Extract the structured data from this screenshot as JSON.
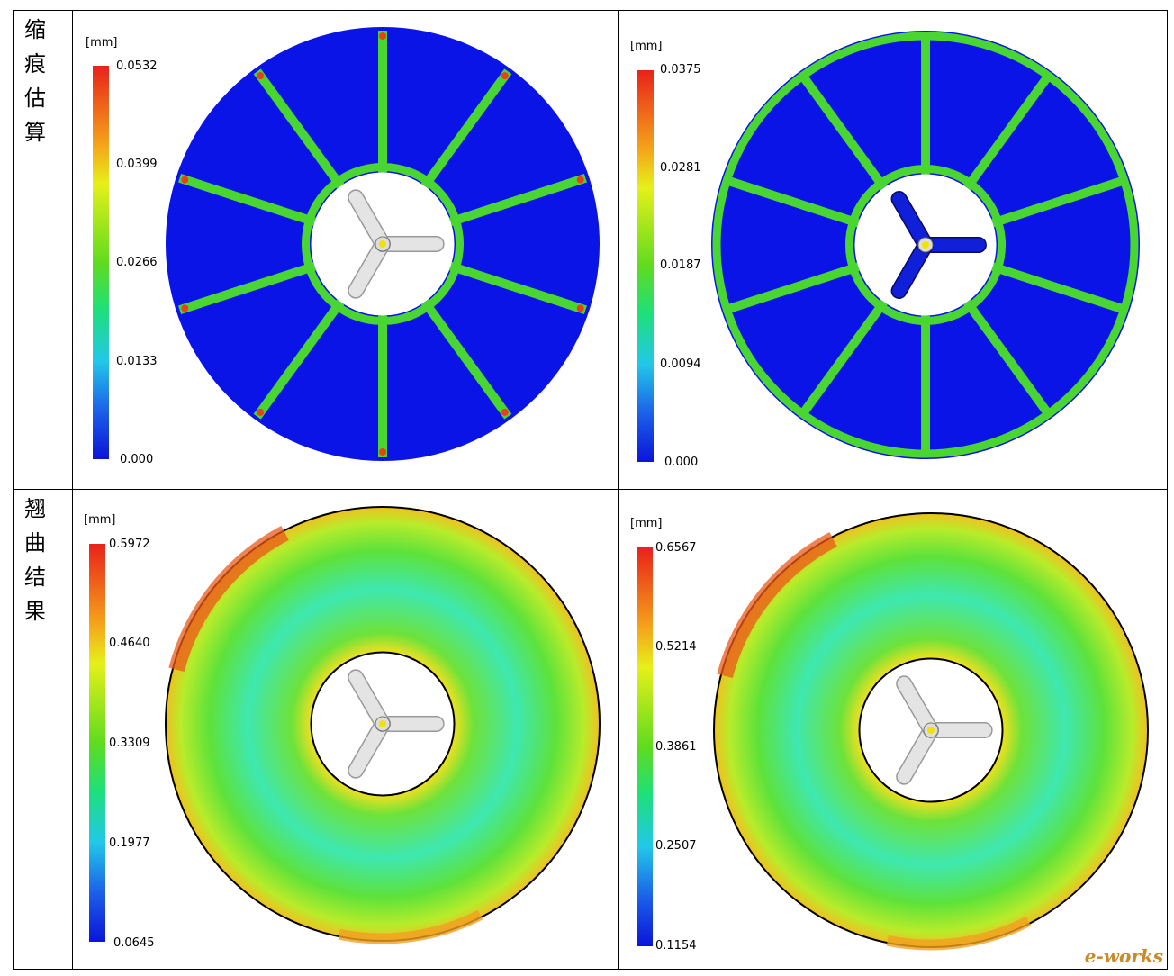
{
  "rows": [
    {
      "label_chars": [
        "缩",
        "痕",
        "估",
        "算"
      ]
    },
    {
      "label_chars": [
        "翘",
        "曲",
        "结",
        "果"
      ]
    }
  ],
  "panels": [
    {
      "id": "p1",
      "unit": "[mm]",
      "ticks": [
        "0.0532",
        "0.0399",
        "0.0266",
        "0.0133",
        "0.000"
      ],
      "field": "sink",
      "runner": "gray",
      "spokes": 10
    },
    {
      "id": "p2",
      "unit": "[mm]",
      "ticks": [
        "0.0375",
        "0.0281",
        "0.0187",
        "0.0094",
        "0.000"
      ],
      "field": "sink",
      "runner": "blue",
      "spokes": 10
    },
    {
      "id": "p3",
      "unit": "[mm]",
      "ticks": [
        "0.5972",
        "0.4640",
        "0.3309",
        "0.1977",
        "0.0645"
      ],
      "field": "warp",
      "runner": "gray"
    },
    {
      "id": "p4",
      "unit": "[mm]",
      "ticks": [
        "0.6567",
        "0.5214",
        "0.3861",
        "0.2507",
        "0.1154"
      ],
      "field": "warp",
      "runner": "lightgray"
    }
  ],
  "colors": {
    "field_blue": "#0a14e6",
    "rib_green": "#49d632",
    "hot_red": "#e8401a",
    "warp_green": "#5de23a",
    "warp_cyan": "#3ee8c0"
  },
  "watermark": "e-works"
}
